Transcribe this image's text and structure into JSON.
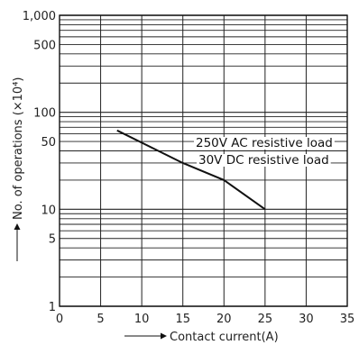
{
  "chart_data": {
    "type": "line",
    "title": "",
    "xlabel": "Contact current(A)",
    "ylabel": "No. of operations (×10⁴)",
    "x_scale": "linear",
    "y_scale": "log",
    "xlim": [
      0,
      35
    ],
    "ylim": [
      1,
      1000
    ],
    "x_ticks": [
      0,
      5,
      10,
      15,
      20,
      25,
      30,
      35
    ],
    "x_tick_labels": [
      "0",
      "5",
      "10",
      "15",
      "20",
      "25",
      "30",
      "35"
    ],
    "y_ticks": [
      1,
      5,
      10,
      50,
      100,
      500,
      1000
    ],
    "y_tick_labels": [
      "1",
      "5",
      "10",
      "50",
      "100",
      "500",
      "1,000"
    ],
    "grid": true,
    "series": [
      {
        "x": [
          7,
          15,
          20,
          25
        ],
        "y": [
          65,
          30,
          20,
          10
        ]
      }
    ],
    "annotations": [
      "250V AC resistive load",
      "30V DC resistive load"
    ],
    "colors": {
      "line": "#111111",
      "grid": "#222222"
    }
  }
}
